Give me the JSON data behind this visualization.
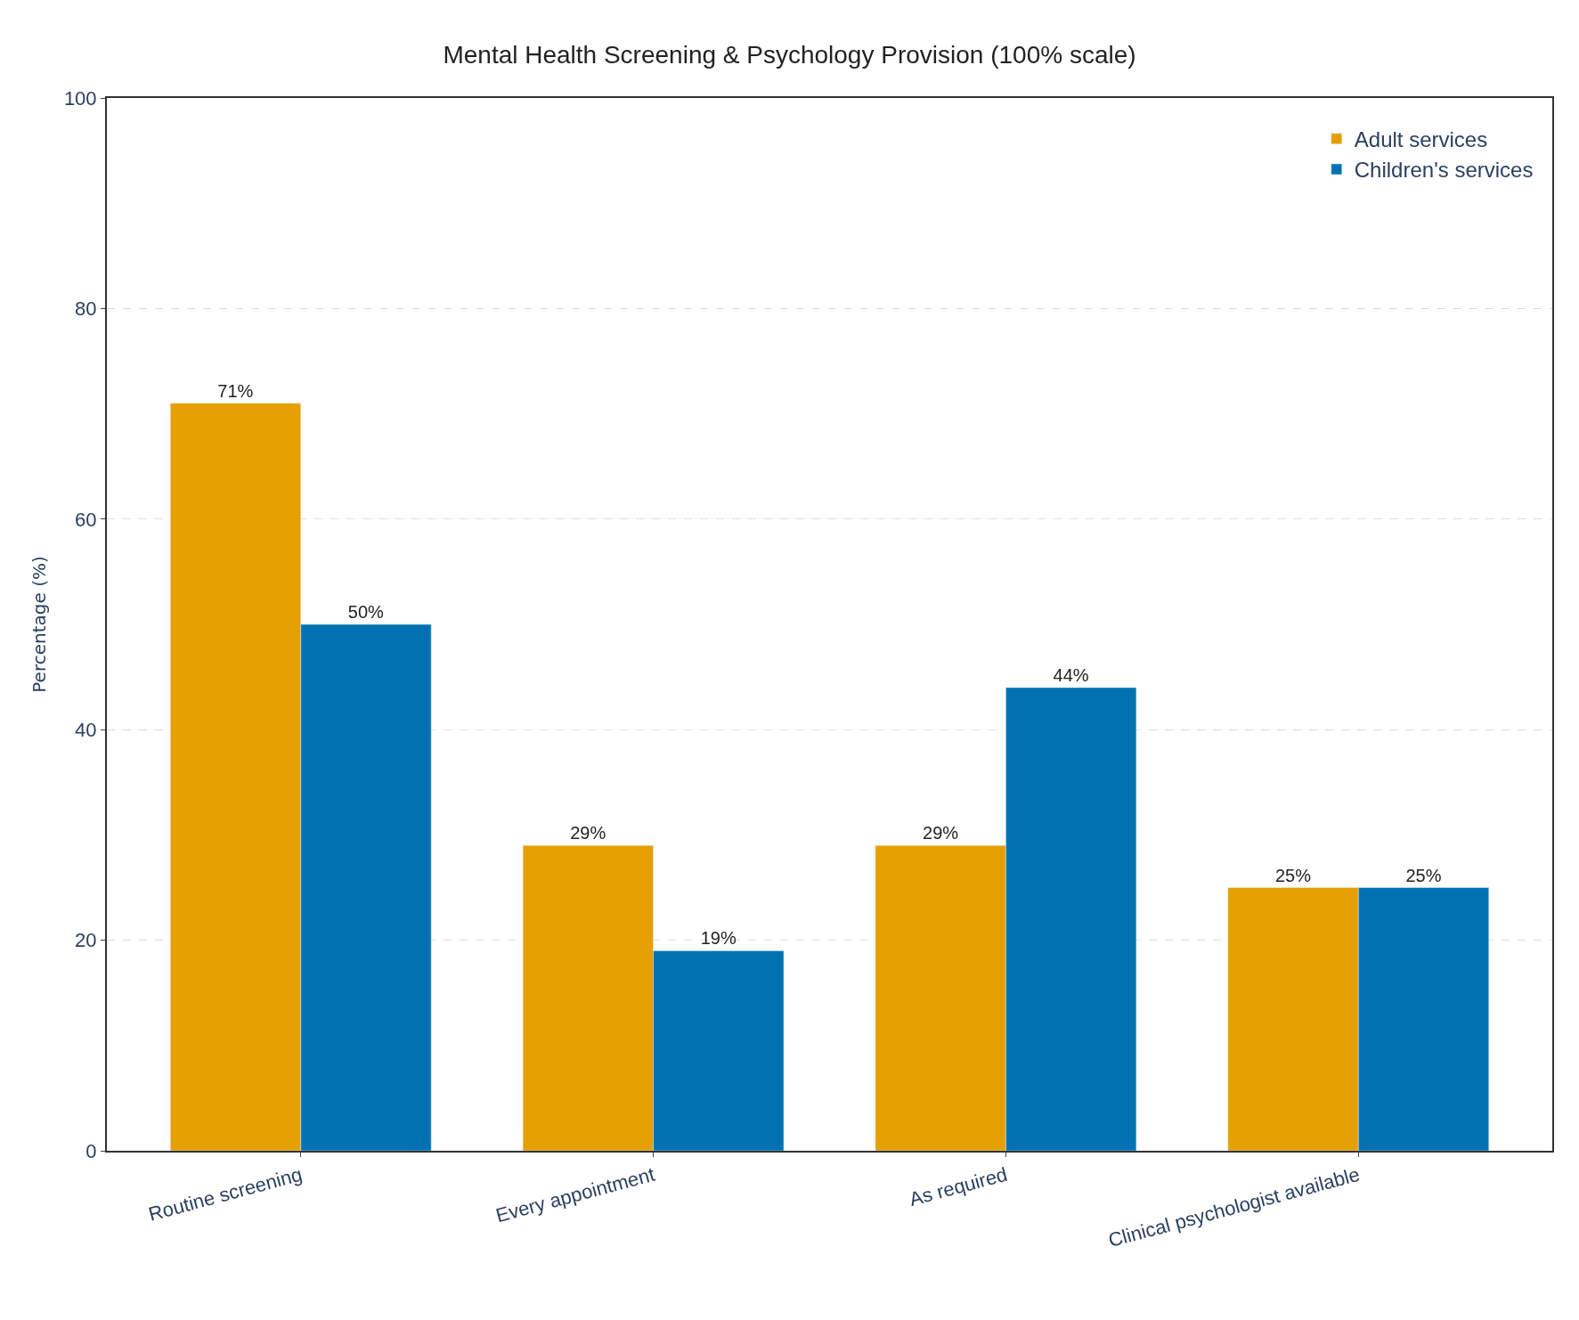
{
  "chart_data": {
    "type": "bar",
    "title": "Mental Health Screening & Psychology Provision (100% scale)",
    "ylabel": "Percentage (%)",
    "categories": [
      "Routine screening",
      "Every appointment",
      "As required",
      "Clinical psychologist available"
    ],
    "series": [
      {
        "name": "Adult services",
        "color": "#e69f00",
        "values": [
          71,
          29,
          29,
          25
        ],
        "value_labels": [
          "71%",
          "29%",
          "29%",
          "25%"
        ]
      },
      {
        "name": "Children's services",
        "color": "#0072b2",
        "values": [
          50,
          19,
          44,
          25
        ],
        "value_labels": [
          "50%",
          "19%",
          "44%",
          "25%"
        ]
      }
    ],
    "ylim": [
      0,
      100
    ],
    "yticks": [
      0,
      20,
      40,
      60,
      80,
      100
    ],
    "grid": "y",
    "legend": "top right"
  }
}
